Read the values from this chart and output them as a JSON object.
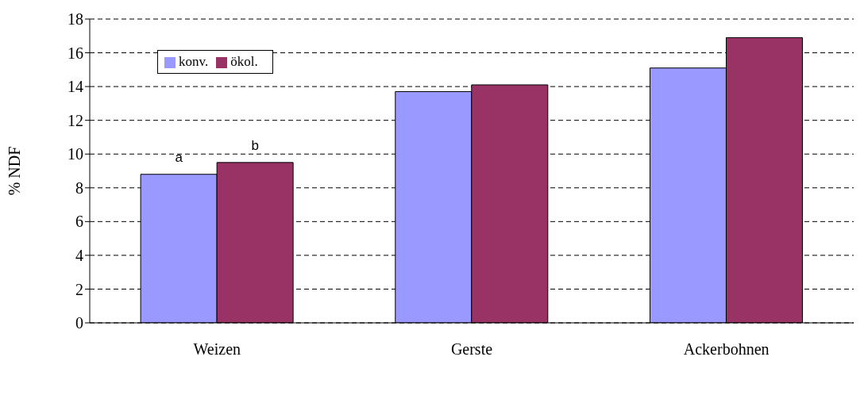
{
  "chart_data": {
    "type": "bar",
    "ylabel": "% NDF",
    "categories": [
      "Weizen",
      "Gerste",
      "Ackerbohnen"
    ],
    "series": [
      {
        "name": "konv.",
        "color": "#9999ff",
        "values": [
          8.8,
          13.7,
          15.1
        ],
        "value_labels": [
          "a",
          null,
          null
        ]
      },
      {
        "name": "ökol.",
        "color": "#993366",
        "values": [
          9.5,
          14.1,
          16.9
        ],
        "value_labels": [
          "b",
          null,
          null
        ]
      }
    ],
    "ylim": [
      0,
      18
    ],
    "yticks": [
      0,
      2,
      4,
      6,
      8,
      10,
      12,
      14,
      16,
      18
    ],
    "grid": "y",
    "legend": "top left"
  }
}
